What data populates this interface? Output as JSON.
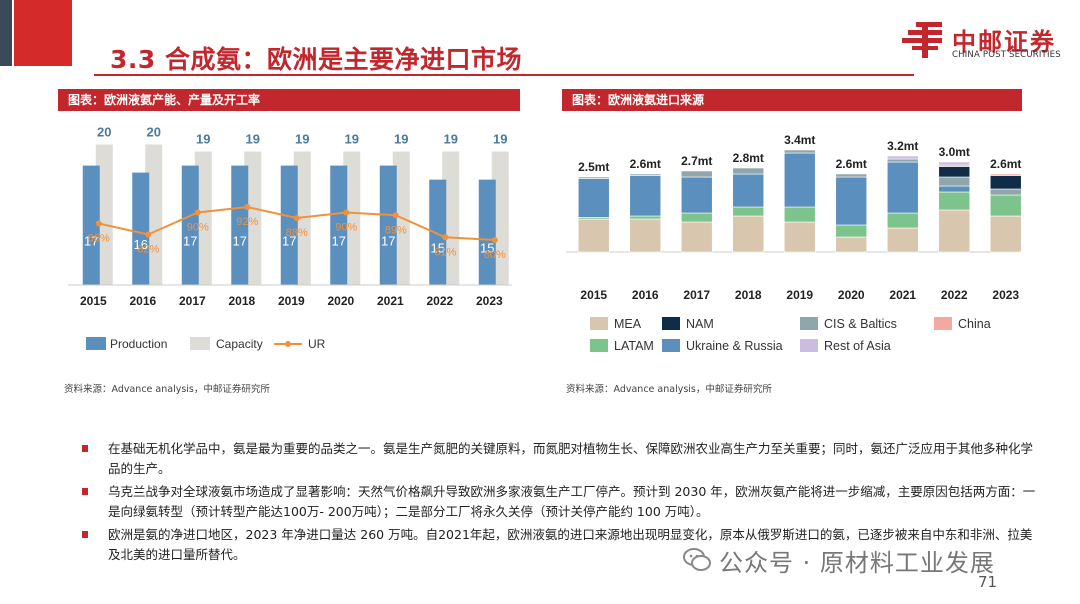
{
  "slide": {
    "title": "3.3 合成氨：欧洲是主要净进口市场",
    "page_number": "71"
  },
  "brand": {
    "name_cn": "中邮证券",
    "name_en": "CHINA POST SECURITIES",
    "colors": {
      "brand_red": "#c2272d",
      "accent_dark": "#3a4a5c"
    }
  },
  "left_panel": {
    "header": "图表：欧洲液氨产能、产量及开工率",
    "source": "资料来源：Advance analysis，中邮证券研究所"
  },
  "right_panel": {
    "header": "图表：欧洲液氨进口来源",
    "source": "资料来源：Advance analysis，中邮证券研究所"
  },
  "bullets": [
    "在基础无机化学品中，氨是最为重要的品类之一。氨是生产氮肥的关键原料，而氮肥对植物生长、保障欧洲农业高生产力至关重要；同时，氨还广泛应用于其他多种化学品的生产。",
    "乌克兰战争对全球液氨市场造成了显著影响：天然气价格飙升导致欧洲多家液氨生产工厂停产。预计到 2030 年，欧洲灰氨产能将进一步缩减，主要原因包括两方面：一是向绿氨转型（预计转型产能达100万- 200万吨）；二是部分工厂将永久关停（预计关停产能约 100 万吨）。",
    "欧洲是氨的净进口地区，2023 年净进口量达 260 万吨。自2021年起，欧洲液氨的进口来源地出现明显变化，原本从俄罗斯进口的氨，已逐步被来自中东和非洲、拉美及北美的进口量所替代。"
  ],
  "watermark": "公众号 · 原材料工业发展",
  "chart_data": [
    {
      "type": "bar",
      "title": "图表：欧洲液氨产能、产量及开工率",
      "categories": [
        "2015",
        "2016",
        "2017",
        "2018",
        "2019",
        "2020",
        "2021",
        "2022",
        "2023"
      ],
      "series": [
        {
          "name": "Production",
          "values": [
            17,
            16,
            17,
            17,
            17,
            17,
            17,
            15,
            15
          ],
          "color": "#5b8fbe"
        },
        {
          "name": "Capacity",
          "values": [
            20,
            20,
            19,
            19,
            19,
            19,
            19,
            19,
            19
          ],
          "color": "#dedcd6"
        },
        {
          "name": "UR",
          "type": "line",
          "values": [
            86,
            82,
            90,
            92,
            88,
            90,
            89,
            81,
            80
          ],
          "labels": [
            "86%",
            "82%",
            "90%",
            "92%",
            "88%",
            "90%",
            "89%",
            "81%",
            "80%"
          ],
          "color": "#f0913c"
        }
      ],
      "ylim": [
        0,
        22
      ],
      "ur_ylim": [
        0,
        100
      ],
      "legend": "bottom"
    },
    {
      "type": "bar",
      "stacked": true,
      "title": "图表：欧洲液氨进口来源",
      "categories": [
        "2015",
        "2016",
        "2017",
        "2018",
        "2019",
        "2020",
        "2021",
        "2022",
        "2023"
      ],
      "totals_labels": [
        "2.5mt",
        "2.6mt",
        "2.7mt",
        "2.8mt",
        "3.4mt",
        "2.6mt",
        "3.2mt",
        "3.0mt",
        "2.6mt"
      ],
      "series": [
        {
          "name": "MEA",
          "values": [
            1.1,
            1.1,
            1.0,
            1.2,
            1.0,
            0.5,
            0.8,
            1.4,
            1.2
          ],
          "color": "#d9c6ae"
        },
        {
          "name": "LATAM",
          "values": [
            0.05,
            0.1,
            0.3,
            0.3,
            0.5,
            0.4,
            0.5,
            0.6,
            0.7
          ],
          "color": "#7cc38c"
        },
        {
          "name": "Ukraine & Russia",
          "values": [
            1.3,
            1.35,
            1.2,
            1.1,
            1.8,
            1.6,
            1.7,
            0.2,
            0.0
          ],
          "color": "#5b8fbe"
        },
        {
          "name": "CIS & Baltics",
          "values": [
            0.05,
            0.05,
            0.2,
            0.2,
            0.1,
            0.1,
            0.1,
            0.3,
            0.2
          ],
          "color": "#8fa6ab"
        },
        {
          "name": "NAM",
          "values": [
            0.0,
            0.0,
            0.0,
            0.0,
            0.0,
            0.0,
            0.0,
            0.35,
            0.45
          ],
          "color": "#0f2d48"
        },
        {
          "name": "China",
          "values": [
            0.0,
            0.0,
            0.0,
            0.0,
            0.0,
            0.0,
            0.0,
            0.05,
            0.05
          ],
          "color": "#f3a9a0"
        },
        {
          "name": "Rest of Asia",
          "values": [
            0.0,
            0.0,
            0.0,
            0.0,
            0.0,
            0.0,
            0.1,
            0.1,
            0.0
          ],
          "color": "#c9bde0"
        }
      ],
      "ylim": [
        0,
        3.6
      ],
      "legend_order": [
        "MEA",
        "NAM",
        "CIS & Baltics",
        "China",
        "LATAM",
        "Ukraine & Russia",
        "Rest of Asia"
      ],
      "legend": "bottom"
    }
  ]
}
